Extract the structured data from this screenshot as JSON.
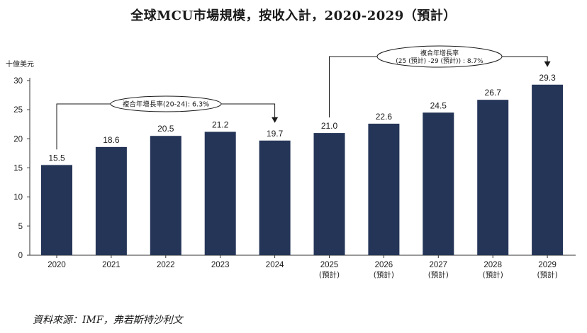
{
  "title": "全球MCU市場規模，按收入計，2020-2029（預計）",
  "source": "資料來源：IMF，弗若斯特沙利文",
  "colors": {
    "bar": "#253558",
    "axis": "#333333",
    "text": "#1a1a1a"
  },
  "chart_data": {
    "type": "bar",
    "title": "全球MCU市場規模，按收入計，2020-2029（預計）",
    "ylabel": "十億美元",
    "xlabel": "",
    "ylim": [
      0,
      30
    ],
    "yticks": [
      0,
      5,
      10,
      15,
      20,
      25,
      30
    ],
    "categories": [
      "2020",
      "2021",
      "2022",
      "2023",
      "2024",
      "2025",
      "2026",
      "2027",
      "2028",
      "2029"
    ],
    "category_notes": [
      "",
      "",
      "",
      "",
      "",
      "(預計)",
      "(預計)",
      "(預計)",
      "(預計)",
      "(預計)"
    ],
    "values": [
      15.5,
      18.6,
      20.5,
      21.2,
      19.7,
      21.0,
      22.6,
      24.5,
      26.7,
      29.3
    ],
    "value_labels": [
      "15.5",
      "18.6",
      "20.5",
      "21.2",
      "19.7",
      "21.0",
      "22.6",
      "24.5",
      "26.7",
      "29.3"
    ],
    "annotations": [
      {
        "from": 0,
        "to": 4,
        "lines": [
          "複合年增長率(20-24): 6.3%"
        ]
      },
      {
        "from": 5,
        "to": 9,
        "lines": [
          "複合年增長率",
          "(25 (預計) -29 (預計)) : 8.7%"
        ]
      }
    ]
  }
}
